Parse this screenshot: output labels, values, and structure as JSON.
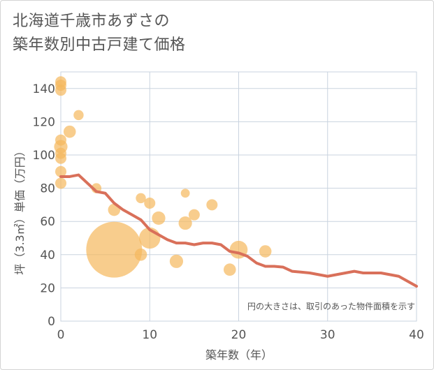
{
  "title_lines": [
    "北海道千歳市あずさの",
    "築年数別中古戸建て価格"
  ],
  "colors": {
    "bubble": "#f5b85c",
    "line": "#d9705a",
    "grid": "#c9d3df",
    "text": "#555555"
  },
  "chart_data": {
    "type": "scatter",
    "xlabel": "築年数（年）",
    "ylabel": "坪（3.3㎡）単価（万円）",
    "xlim": [
      0,
      40
    ],
    "ylim": [
      0,
      150
    ],
    "xticks": [
      0,
      10,
      20,
      30,
      40
    ],
    "yticks": [
      0,
      20,
      40,
      60,
      80,
      100,
      120,
      140
    ],
    "note": "円の大きさは、取引のあった物件面積を示す",
    "bubbles": [
      {
        "x": 0,
        "y": 144,
        "size": 1
      },
      {
        "x": 0,
        "y": 142,
        "size": 1
      },
      {
        "x": 0,
        "y": 139,
        "size": 1
      },
      {
        "x": 0,
        "y": 109,
        "size": 1
      },
      {
        "x": 0,
        "y": 105,
        "size": 1.2
      },
      {
        "x": 0,
        "y": 101,
        "size": 1
      },
      {
        "x": 0,
        "y": 98,
        "size": 1
      },
      {
        "x": 0,
        "y": 90,
        "size": 1
      },
      {
        "x": 0,
        "y": 83,
        "size": 1
      },
      {
        "x": 1,
        "y": 114,
        "size": 1.1
      },
      {
        "x": 2,
        "y": 124,
        "size": 0.9
      },
      {
        "x": 4,
        "y": 80,
        "size": 0.9
      },
      {
        "x": 6,
        "y": 67,
        "size": 1.1
      },
      {
        "x": 6,
        "y": 43,
        "size": 5
      },
      {
        "x": 9,
        "y": 74,
        "size": 0.9
      },
      {
        "x": 9,
        "y": 40,
        "size": 1.1
      },
      {
        "x": 10,
        "y": 71,
        "size": 1
      },
      {
        "x": 10,
        "y": 50,
        "size": 1.9
      },
      {
        "x": 11,
        "y": 62,
        "size": 1.2
      },
      {
        "x": 13,
        "y": 36,
        "size": 1.2
      },
      {
        "x": 14,
        "y": 77,
        "size": 0.8
      },
      {
        "x": 14,
        "y": 59,
        "size": 1.2
      },
      {
        "x": 15,
        "y": 64,
        "size": 1
      },
      {
        "x": 17,
        "y": 70,
        "size": 1
      },
      {
        "x": 19,
        "y": 31,
        "size": 1.1
      },
      {
        "x": 20,
        "y": 43,
        "size": 1.6
      },
      {
        "x": 23,
        "y": 42,
        "size": 1.1
      }
    ],
    "trend": {
      "x": [
        0,
        1,
        2,
        3,
        4,
        5,
        6,
        7,
        8,
        9,
        10,
        11,
        12,
        13,
        14,
        15,
        16,
        17,
        18,
        19,
        20,
        21,
        22,
        23,
        24,
        25,
        26,
        27,
        28,
        29,
        30,
        31,
        32,
        33,
        34,
        35,
        36,
        37,
        38,
        39,
        40
      ],
      "y": [
        87,
        87,
        88,
        83,
        78,
        77,
        71,
        67,
        64,
        61,
        55,
        52,
        49,
        47,
        47,
        46,
        47,
        47,
        46,
        42,
        41,
        39,
        35,
        33,
        33,
        32.5,
        30,
        29.5,
        29,
        28,
        27,
        28,
        29,
        30,
        29,
        29,
        29,
        28,
        27,
        24,
        21
      ]
    }
  }
}
